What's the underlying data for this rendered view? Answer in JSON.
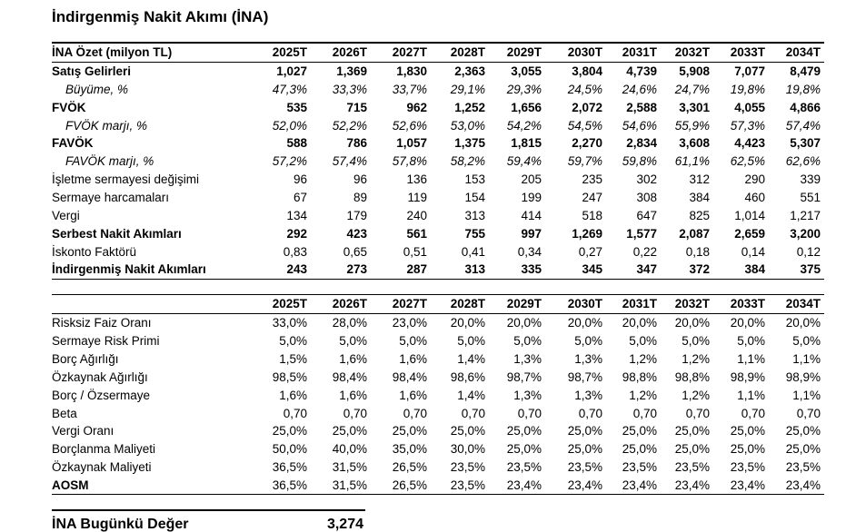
{
  "title": "İndirgenmiş Nakit Akımı (İNA)",
  "table1": {
    "header": "İNA Özet (milyon TL)",
    "columns": [
      "2025T",
      "2026T",
      "2027T",
      "2028T",
      "2029T",
      "2030T",
      "2031T",
      "2032T",
      "2033T",
      "2034T"
    ],
    "rows": [
      {
        "label": "Satış Gelirleri",
        "values": [
          "1,027",
          "1,369",
          "1,830",
          "2,363",
          "3,055",
          "3,804",
          "4,739",
          "5,908",
          "7,077",
          "8,479"
        ]
      },
      {
        "label": "Büyüme, %",
        "values": [
          "47,3%",
          "33,3%",
          "33,7%",
          "29,1%",
          "29,3%",
          "24,5%",
          "24,6%",
          "24,7%",
          "19,8%",
          "19,8%"
        ]
      },
      {
        "label": "FVÖK",
        "values": [
          "535",
          "715",
          "962",
          "1,252",
          "1,656",
          "2,072",
          "2,588",
          "3,301",
          "4,055",
          "4,866"
        ]
      },
      {
        "label": "FVÖK marjı, %",
        "values": [
          "52,0%",
          "52,2%",
          "52,6%",
          "53,0%",
          "54,2%",
          "54,5%",
          "54,6%",
          "55,9%",
          "57,3%",
          "57,4%"
        ]
      },
      {
        "label": "FAVÖK",
        "values": [
          "588",
          "786",
          "1,057",
          "1,375",
          "1,815",
          "2,270",
          "2,834",
          "3,608",
          "4,423",
          "5,307"
        ]
      },
      {
        "label": "FAVÖK marjı, %",
        "values": [
          "57,2%",
          "57,4%",
          "57,8%",
          "58,2%",
          "59,4%",
          "59,7%",
          "59,8%",
          "61,1%",
          "62,5%",
          "62,6%"
        ]
      },
      {
        "label": "İşletme sermayesi değişimi",
        "values": [
          "96",
          "96",
          "136",
          "153",
          "205",
          "235",
          "302",
          "312",
          "290",
          "339"
        ]
      },
      {
        "label": "Sermaye harcamaları",
        "values": [
          "67",
          "89",
          "119",
          "154",
          "199",
          "247",
          "308",
          "384",
          "460",
          "551"
        ]
      },
      {
        "label": "Vergi",
        "values": [
          "134",
          "179",
          "240",
          "313",
          "414",
          "518",
          "647",
          "825",
          "1,014",
          "1,217"
        ]
      },
      {
        "label": "Serbest Nakit Akımları",
        "values": [
          "292",
          "423",
          "561",
          "755",
          "997",
          "1,269",
          "1,577",
          "2,087",
          "2,659",
          "3,200"
        ]
      },
      {
        "label": "İskonto Faktörü",
        "values": [
          "0,83",
          "0,65",
          "0,51",
          "0,41",
          "0,34",
          "0,27",
          "0,22",
          "0,18",
          "0,14",
          "0,12"
        ]
      },
      {
        "label": "İndirgenmiş Nakit Akımları",
        "values": [
          "243",
          "273",
          "287",
          "313",
          "335",
          "345",
          "347",
          "372",
          "384",
          "375"
        ]
      }
    ]
  },
  "table2": {
    "columns": [
      "2025T",
      "2026T",
      "2027T",
      "2028T",
      "2029T",
      "2030T",
      "2031T",
      "2032T",
      "2033T",
      "2034T"
    ],
    "rows": [
      {
        "label": "Risksiz Faiz Oranı",
        "values": [
          "33,0%",
          "28,0%",
          "23,0%",
          "20,0%",
          "20,0%",
          "20,0%",
          "20,0%",
          "20,0%",
          "20,0%",
          "20,0%"
        ]
      },
      {
        "label": "Sermaye Risk Primi",
        "values": [
          "5,0%",
          "5,0%",
          "5,0%",
          "5,0%",
          "5,0%",
          "5,0%",
          "5,0%",
          "5,0%",
          "5,0%",
          "5,0%"
        ]
      },
      {
        "label": "Borç Ağırlığı",
        "values": [
          "1,5%",
          "1,6%",
          "1,6%",
          "1,4%",
          "1,3%",
          "1,3%",
          "1,2%",
          "1,2%",
          "1,1%",
          "1,1%"
        ]
      },
      {
        "label": "Özkaynak Ağırlığı",
        "values": [
          "98,5%",
          "98,4%",
          "98,4%",
          "98,6%",
          "98,7%",
          "98,7%",
          "98,8%",
          "98,8%",
          "98,9%",
          "98,9%"
        ]
      },
      {
        "label": "Borç / Özsermaye",
        "values": [
          "1,6%",
          "1,6%",
          "1,6%",
          "1,4%",
          "1,3%",
          "1,3%",
          "1,2%",
          "1,2%",
          "1,1%",
          "1,1%"
        ]
      },
      {
        "label": "Beta",
        "values": [
          "0,70",
          "0,70",
          "0,70",
          "0,70",
          "0,70",
          "0,70",
          "0,70",
          "0,70",
          "0,70",
          "0,70"
        ]
      },
      {
        "label": "Vergi Oranı",
        "values": [
          "25,0%",
          "25,0%",
          "25,0%",
          "25,0%",
          "25,0%",
          "25,0%",
          "25,0%",
          "25,0%",
          "25,0%",
          "25,0%"
        ]
      },
      {
        "label": "Borçlanma Maliyeti",
        "values": [
          "50,0%",
          "40,0%",
          "35,0%",
          "30,0%",
          "25,0%",
          "25,0%",
          "25,0%",
          "25,0%",
          "25,0%",
          "25,0%"
        ]
      },
      {
        "label": "Özkaynak Maliyeti",
        "values": [
          "36,5%",
          "31,5%",
          "26,5%",
          "23,5%",
          "23,5%",
          "23,5%",
          "23,5%",
          "23,5%",
          "23,5%",
          "23,5%"
        ]
      },
      {
        "label": "AOSM",
        "values": [
          "36,5%",
          "31,5%",
          "26,5%",
          "23,5%",
          "23,4%",
          "23,4%",
          "23,4%",
          "23,4%",
          "23,4%",
          "23,4%"
        ]
      }
    ]
  },
  "summary": {
    "label": "İNA Bugünkü Değer",
    "value": "3,274"
  }
}
